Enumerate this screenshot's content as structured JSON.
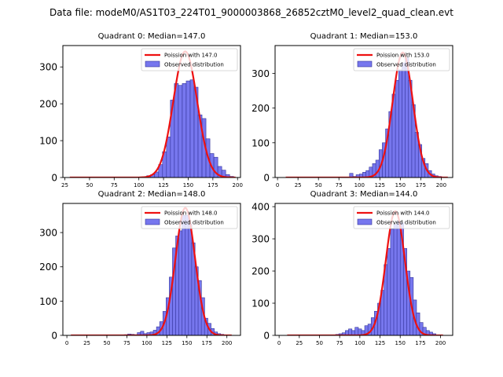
{
  "chart_data": {
    "suptitle": "Data file: modeM0/AS1T03_224T01_9000003868_26852cztM0_level2_quad_clean.evt",
    "legend_labels": {
      "observed": "Observed distribution"
    },
    "colors": {
      "fit": "#ee1111",
      "bar_fill": "#7777ee",
      "bar_edge": "#33339a",
      "axis": "#000000"
    },
    "panels": [
      {
        "type": "bar",
        "title": "Quadrant 0: Median=147.0",
        "legend_fit": "Poission with 147.0",
        "xlim": [
          23,
          203
        ],
        "ylim": [
          0,
          358
        ],
        "xticks": [
          25,
          50,
          75,
          100,
          125,
          150,
          175,
          200
        ],
        "yticks": [
          0,
          100,
          200,
          300
        ],
        "bin_width": 4,
        "bins": [
          [
            104,
            2
          ],
          [
            108,
            5
          ],
          [
            112,
            8
          ],
          [
            116,
            15
          ],
          [
            120,
            35
          ],
          [
            124,
            70
          ],
          [
            128,
            110
          ],
          [
            132,
            210
          ],
          [
            136,
            255
          ],
          [
            140,
            250
          ],
          [
            144,
            255
          ],
          [
            148,
            262
          ],
          [
            152,
            265
          ],
          [
            156,
            245
          ],
          [
            160,
            170
          ],
          [
            164,
            160
          ],
          [
            168,
            105
          ],
          [
            172,
            65
          ],
          [
            176,
            55
          ],
          [
            180,
            30
          ],
          [
            184,
            20
          ],
          [
            188,
            8
          ],
          [
            192,
            3
          ]
        ],
        "fit": {
          "mean": 147,
          "peak": 342,
          "sigma": 12.1,
          "x0": 30,
          "x1": 198
        }
      },
      {
        "type": "bar",
        "title": "Quadrant 1: Median=153.0",
        "legend_fit": "Poission with 153.0",
        "xlim": [
          -3,
          214
        ],
        "ylim": [
          0,
          380
        ],
        "xticks": [
          0,
          25,
          50,
          75,
          100,
          125,
          150,
          175,
          200
        ],
        "yticks": [
          0,
          100,
          200,
          300
        ],
        "bin_width": 4.2,
        "bins": [
          [
            88,
            12
          ],
          [
            92,
            3
          ],
          [
            96,
            8
          ],
          [
            100,
            10
          ],
          [
            104,
            15
          ],
          [
            108,
            20
          ],
          [
            112,
            30
          ],
          [
            116,
            40
          ],
          [
            120,
            50
          ],
          [
            124,
            80
          ],
          [
            128,
            100
          ],
          [
            132,
            140
          ],
          [
            136,
            190
          ],
          [
            140,
            240
          ],
          [
            144,
            280
          ],
          [
            148,
            310
          ],
          [
            152,
            330
          ],
          [
            156,
            345
          ],
          [
            160,
            280
          ],
          [
            164,
            210
          ],
          [
            168,
            130
          ],
          [
            172,
            95
          ],
          [
            176,
            55
          ],
          [
            180,
            40
          ],
          [
            184,
            20
          ],
          [
            188,
            10
          ],
          [
            192,
            5
          ],
          [
            196,
            3
          ]
        ],
        "fit": {
          "mean": 153,
          "peak": 360,
          "sigma": 12.4,
          "x0": 10,
          "x1": 208
        }
      },
      {
        "type": "bar",
        "title": "Quadrant 2: Median=148.0",
        "legend_fit": "Poission with 148.0",
        "xlim": [
          -5,
          217
        ],
        "ylim": [
          0,
          385
        ],
        "xticks": [
          0,
          25,
          50,
          75,
          100,
          125,
          150,
          175,
          200
        ],
        "yticks": [
          0,
          100,
          200,
          300
        ],
        "bin_width": 4.2,
        "bins": [
          [
            72,
            2
          ],
          [
            76,
            4
          ],
          [
            80,
            3
          ],
          [
            84,
            2
          ],
          [
            88,
            8
          ],
          [
            92,
            12
          ],
          [
            96,
            5
          ],
          [
            100,
            8
          ],
          [
            104,
            10
          ],
          [
            108,
            15
          ],
          [
            112,
            25
          ],
          [
            116,
            40
          ],
          [
            120,
            70
          ],
          [
            124,
            110
          ],
          [
            128,
            170
          ],
          [
            132,
            255
          ],
          [
            136,
            290
          ],
          [
            140,
            305
          ],
          [
            144,
            350
          ],
          [
            148,
            350
          ],
          [
            152,
            325
          ],
          [
            156,
            270
          ],
          [
            160,
            200
          ],
          [
            164,
            160
          ],
          [
            168,
            110
          ],
          [
            172,
            50
          ],
          [
            176,
            35
          ],
          [
            180,
            20
          ],
          [
            184,
            10
          ],
          [
            188,
            5
          ],
          [
            192,
            3
          ]
        ],
        "fit": {
          "mean": 148,
          "peak": 372,
          "sigma": 12.2,
          "x0": 5,
          "x1": 206
        }
      },
      {
        "type": "bar",
        "title": "Quadrant 3: Median=144.0",
        "legend_fit": "Poission with 144.0",
        "xlim": [
          -5,
          215
        ],
        "ylim": [
          0,
          410
        ],
        "xticks": [
          0,
          25,
          50,
          75,
          100,
          125,
          150,
          175,
          200
        ],
        "yticks": [
          0,
          100,
          200,
          300,
          400
        ],
        "bin_width": 4.2,
        "bins": [
          [
            70,
            3
          ],
          [
            74,
            5
          ],
          [
            78,
            8
          ],
          [
            82,
            15
          ],
          [
            86,
            20
          ],
          [
            90,
            15
          ],
          [
            94,
            25
          ],
          [
            98,
            20
          ],
          [
            102,
            15
          ],
          [
            106,
            30
          ],
          [
            110,
            35
          ],
          [
            114,
            55
          ],
          [
            118,
            75
          ],
          [
            122,
            100
          ],
          [
            126,
            140
          ],
          [
            130,
            220
          ],
          [
            134,
            270
          ],
          [
            138,
            330
          ],
          [
            142,
            345
          ],
          [
            146,
            355
          ],
          [
            150,
            350
          ],
          [
            154,
            270
          ],
          [
            158,
            200
          ],
          [
            162,
            180
          ],
          [
            166,
            110
          ],
          [
            170,
            70
          ],
          [
            174,
            40
          ],
          [
            178,
            25
          ],
          [
            182,
            15
          ],
          [
            186,
            10
          ],
          [
            190,
            5
          ]
        ],
        "fit": {
          "mean": 144,
          "peak": 386,
          "sigma": 11.8,
          "x0": 10,
          "x1": 203
        }
      }
    ]
  }
}
